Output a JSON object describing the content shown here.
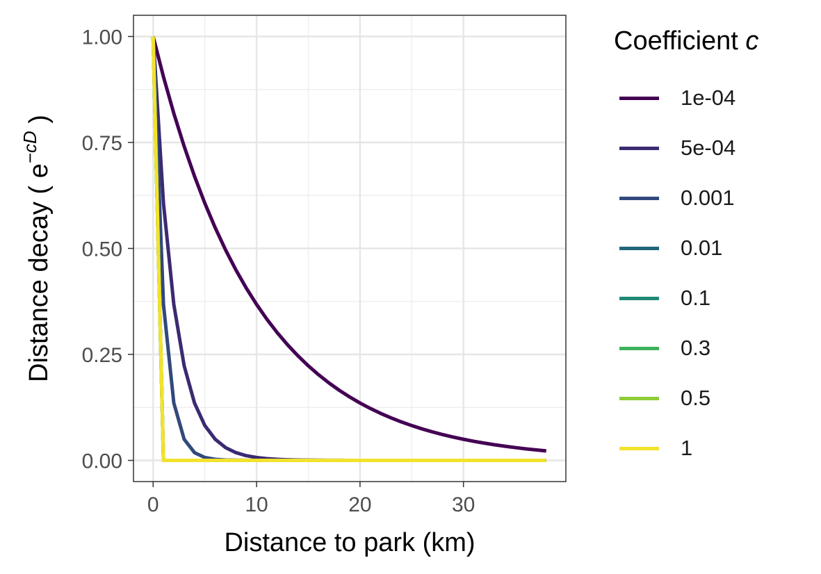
{
  "chart_data": {
    "type": "line",
    "xlabel": "Distance to park (km)",
    "ylabel": {
      "prefix": "Distance decay ( e",
      "superscript": "−cD",
      "suffix": " )"
    },
    "x_ticks": [
      0,
      10,
      20,
      30
    ],
    "y_ticks": [
      "0.00",
      "0.25",
      "0.50",
      "0.75",
      "1.00"
    ],
    "xlim": [
      -1.9,
      39.9
    ],
    "ylim": [
      -0.05,
      1.05
    ],
    "grid": true,
    "legend": {
      "title": "Coefficient",
      "title_italic": "c",
      "placement": "right"
    },
    "function": "exp(-c * 1000 * D)",
    "x": [
      0,
      1,
      2,
      3,
      4,
      5,
      6,
      7,
      8,
      9,
      10,
      11,
      12,
      13,
      14,
      15,
      16,
      17,
      18,
      19,
      20,
      21,
      22,
      23,
      24,
      25,
      26,
      27,
      28,
      29,
      30,
      31,
      32,
      33,
      34,
      35,
      36,
      37,
      38
    ],
    "series": [
      {
        "name": "1e-04",
        "c": 0.0001,
        "color": "#440154"
      },
      {
        "name": "5e-04",
        "c": 0.0005,
        "color": "#3b2a72"
      },
      {
        "name": "0.001",
        "c": 0.001,
        "color": "#31497c"
      },
      {
        "name": "0.01",
        "c": 0.01,
        "color": "#21657a"
      },
      {
        "name": "0.1",
        "c": 0.1,
        "color": "#1f8a75"
      },
      {
        "name": "0.3",
        "c": 0.3,
        "color": "#3db25a"
      },
      {
        "name": "0.5",
        "c": 0.5,
        "color": "#8fcb38"
      },
      {
        "name": "1",
        "c": 1,
        "color": "#f2e22c"
      }
    ]
  }
}
